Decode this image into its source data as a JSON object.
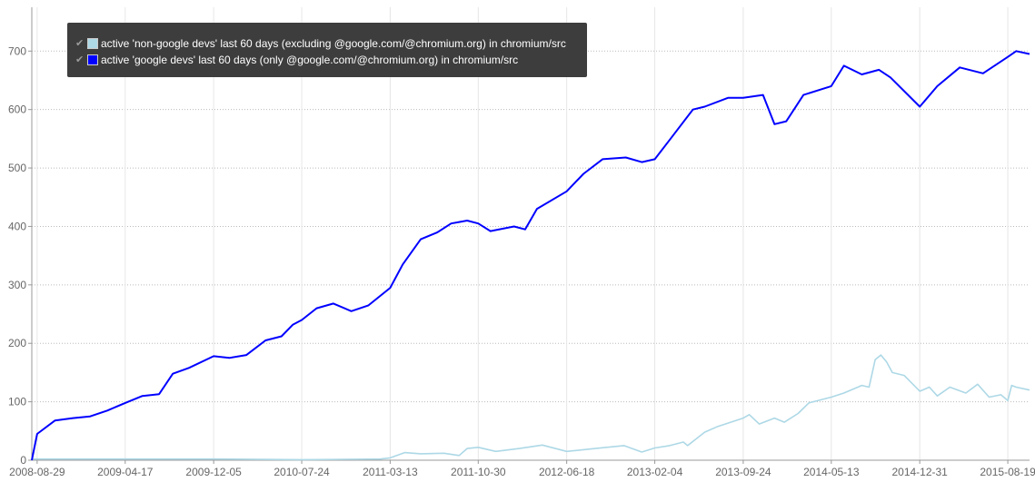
{
  "chart_data": {
    "type": "line",
    "x_ticks": [
      "2008-08-29",
      "2009-04-17",
      "2009-12-05",
      "2010-07-24",
      "2011-03-13",
      "2011-10-30",
      "2012-06-18",
      "2013-02-04",
      "2013-09-24",
      "2014-05-13",
      "2014-12-31",
      "2015-08-19"
    ],
    "y_ticks": [
      0,
      100,
      200,
      300,
      400,
      500,
      600,
      700
    ],
    "ylim": [
      0,
      775
    ],
    "xlim": [
      "2008-08-15",
      "2015-10-15"
    ],
    "grid": true,
    "legend_position": "top-left",
    "series": [
      {
        "name": "active 'non-google devs' last 60 days (excluding @google.com/@chromium.org) in chromium/src",
        "color": "#add8e6",
        "points": [
          [
            "2008-08-15",
            2
          ],
          [
            "2009-04-17",
            2
          ],
          [
            "2009-12-05",
            2
          ],
          [
            "2010-07-24",
            1
          ],
          [
            "2011-02-15",
            2
          ],
          [
            "2011-03-13",
            4
          ],
          [
            "2011-04-20",
            13
          ],
          [
            "2011-06-01",
            11
          ],
          [
            "2011-08-01",
            12
          ],
          [
            "2011-09-10",
            8
          ],
          [
            "2011-10-01",
            20
          ],
          [
            "2011-10-30",
            22
          ],
          [
            "2011-12-15",
            15
          ],
          [
            "2012-02-15",
            20
          ],
          [
            "2012-04-15",
            26
          ],
          [
            "2012-06-18",
            15
          ],
          [
            "2012-09-01",
            20
          ],
          [
            "2012-11-15",
            25
          ],
          [
            "2013-01-01",
            14
          ],
          [
            "2013-02-04",
            21
          ],
          [
            "2013-03-15",
            25
          ],
          [
            "2013-04-20",
            31
          ],
          [
            "2013-05-01",
            25
          ],
          [
            "2013-06-15",
            48
          ],
          [
            "2013-07-20",
            58
          ],
          [
            "2013-09-24",
            72
          ],
          [
            "2013-10-10",
            78
          ],
          [
            "2013-11-05",
            62
          ],
          [
            "2013-12-15",
            72
          ],
          [
            "2014-01-10",
            65
          ],
          [
            "2014-02-15",
            80
          ],
          [
            "2014-03-15",
            98
          ],
          [
            "2014-05-13",
            108
          ],
          [
            "2014-06-15",
            115
          ],
          [
            "2014-08-01",
            128
          ],
          [
            "2014-08-20",
            125
          ],
          [
            "2014-09-05",
            172
          ],
          [
            "2014-09-20",
            180
          ],
          [
            "2014-10-05",
            168
          ],
          [
            "2014-10-20",
            150
          ],
          [
            "2014-11-20",
            145
          ],
          [
            "2014-12-31",
            118
          ],
          [
            "2015-01-25",
            125
          ],
          [
            "2015-02-15",
            110
          ],
          [
            "2015-03-20",
            125
          ],
          [
            "2015-05-01",
            115
          ],
          [
            "2015-06-01",
            130
          ],
          [
            "2015-07-01",
            108
          ],
          [
            "2015-08-01",
            112
          ],
          [
            "2015-08-19",
            102
          ],
          [
            "2015-08-29",
            128
          ],
          [
            "2015-09-10",
            125
          ],
          [
            "2015-10-15",
            120
          ]
        ]
      },
      {
        "name": "active 'google devs' last 60 days (only @google.com/@chromium.org) in chromium/src",
        "color": "#0000ff",
        "points": [
          [
            "2008-08-15",
            0
          ],
          [
            "2008-08-29",
            45
          ],
          [
            "2008-10-15",
            68
          ],
          [
            "2008-12-01",
            72
          ],
          [
            "2009-01-15",
            75
          ],
          [
            "2009-03-01",
            85
          ],
          [
            "2009-04-17",
            98
          ],
          [
            "2009-06-01",
            110
          ],
          [
            "2009-07-15",
            113
          ],
          [
            "2009-08-20",
            148
          ],
          [
            "2009-10-01",
            158
          ],
          [
            "2009-12-05",
            178
          ],
          [
            "2010-01-15",
            175
          ],
          [
            "2010-03-01",
            180
          ],
          [
            "2010-04-20",
            205
          ],
          [
            "2010-06-01",
            212
          ],
          [
            "2010-07-01",
            232
          ],
          [
            "2010-07-24",
            240
          ],
          [
            "2010-09-01",
            260
          ],
          [
            "2010-10-15",
            268
          ],
          [
            "2010-12-01",
            255
          ],
          [
            "2011-01-15",
            265
          ],
          [
            "2011-03-13",
            295
          ],
          [
            "2011-04-15",
            335
          ],
          [
            "2011-06-01",
            378
          ],
          [
            "2011-07-15",
            390
          ],
          [
            "2011-08-20",
            405
          ],
          [
            "2011-10-01",
            410
          ],
          [
            "2011-10-30",
            405
          ],
          [
            "2011-12-01",
            392
          ],
          [
            "2012-02-01",
            400
          ],
          [
            "2012-03-01",
            395
          ],
          [
            "2012-04-01",
            430
          ],
          [
            "2012-06-18",
            460
          ],
          [
            "2012-08-01",
            490
          ],
          [
            "2012-09-20",
            515
          ],
          [
            "2012-11-20",
            518
          ],
          [
            "2013-01-01",
            510
          ],
          [
            "2013-02-04",
            515
          ],
          [
            "2013-03-15",
            548
          ],
          [
            "2013-05-15",
            600
          ],
          [
            "2013-06-15",
            605
          ],
          [
            "2013-08-15",
            620
          ],
          [
            "2013-09-24",
            620
          ],
          [
            "2013-11-15",
            625
          ],
          [
            "2013-12-15",
            575
          ],
          [
            "2014-01-15",
            580
          ],
          [
            "2014-03-01",
            625
          ],
          [
            "2014-05-13",
            640
          ],
          [
            "2014-06-15",
            675
          ],
          [
            "2014-08-01",
            660
          ],
          [
            "2014-09-15",
            668
          ],
          [
            "2014-10-15",
            655
          ],
          [
            "2014-12-31",
            605
          ],
          [
            "2015-02-15",
            640
          ],
          [
            "2015-04-15",
            672
          ],
          [
            "2015-06-15",
            662
          ],
          [
            "2015-08-19",
            690
          ],
          [
            "2015-09-10",
            700
          ],
          [
            "2015-10-15",
            695
          ]
        ]
      }
    ]
  }
}
